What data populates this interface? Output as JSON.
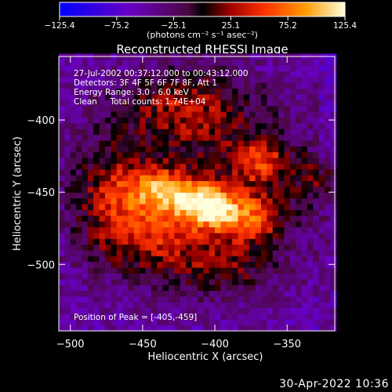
{
  "chart_data": {
    "type": "heatmap",
    "title": "Reconstructed RHESSI Image",
    "xlabel": "Heliocentric X (arcsec)",
    "ylabel": "Heliocentric Y (arcsec)",
    "xlim": [
      -508,
      -317
    ],
    "ylim": [
      -546,
      -356
    ],
    "x_ticks": [
      {
        "value": -500,
        "label": "−500"
      },
      {
        "value": -450,
        "label": "−450"
      },
      {
        "value": -400,
        "label": "−400"
      },
      {
        "value": -350,
        "label": "−350"
      }
    ],
    "y_ticks": [
      {
        "value": -400,
        "label": "−400"
      },
      {
        "value": -450,
        "label": "−450"
      },
      {
        "value": -500,
        "label": "−500"
      }
    ],
    "colorbar": {
      "min": -125.4,
      "max": 125.4,
      "ticks": [
        {
          "value": -125.4,
          "label": "−125.4"
        },
        {
          "value": -75.2,
          "label": "−75.2"
        },
        {
          "value": -25.1,
          "label": "−25.1"
        },
        {
          "value": 25.1,
          "label": "25.1"
        },
        {
          "value": 75.2,
          "label": "75.2"
        },
        {
          "value": 125.4,
          "label": "125.4"
        }
      ],
      "unit_label": "(photons cm⁻² s⁻¹ asec⁻²)"
    },
    "annotations": [
      "27-Jul-2002 00:37:12.000 to 00:43:12.000",
      "Detectors: 3F 4F 5F 6F 7F 8F, Att 1",
      "Energy Range: 3.0 - 6.0 keV",
      "Clean     Total counts: 1.74E+04"
    ],
    "peak": {
      "x": -405,
      "y": -459,
      "label": "Position of Peak = [-405,-459]"
    },
    "source_blobs": [
      {
        "x": -405,
        "y": -459,
        "sx": 14,
        "sy": 10,
        "a": 125
      },
      {
        "x": -435,
        "y": -448,
        "sx": 16,
        "sy": 10,
        "a": 95
      },
      {
        "x": -375,
        "y": -468,
        "sx": 16,
        "sy": 12,
        "a": 85
      },
      {
        "x": -368,
        "y": -428,
        "sx": 14,
        "sy": 12,
        "a": 75
      },
      {
        "x": -420,
        "y": -390,
        "sx": 30,
        "sy": 18,
        "a": 60
      },
      {
        "x": -440,
        "y": -480,
        "sx": 30,
        "sy": 20,
        "a": 65
      },
      {
        "x": -390,
        "y": -505,
        "sx": 24,
        "sy": 14,
        "a": 40
      },
      {
        "x": -470,
        "y": -450,
        "sx": 18,
        "sy": 24,
        "a": 55
      },
      {
        "x": -410,
        "y": -440,
        "sx": 70,
        "sy": 50,
        "a": 45
      },
      {
        "x": -330,
        "y": -440,
        "sx": 12,
        "sy": 12,
        "a": 35
      }
    ]
  },
  "footer": {
    "date": "30-Apr-2022 10:36"
  }
}
